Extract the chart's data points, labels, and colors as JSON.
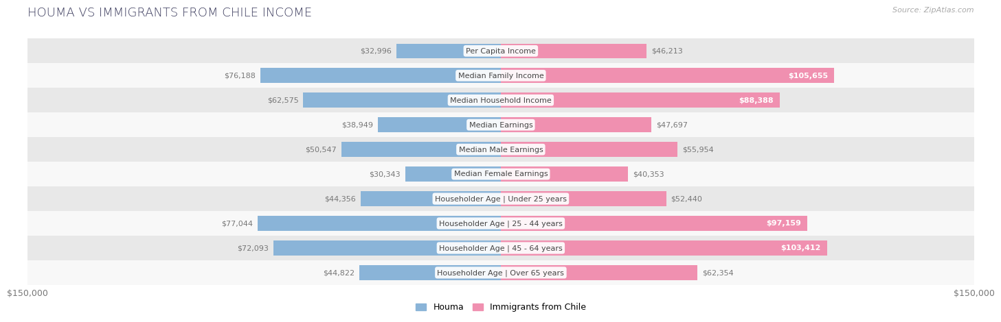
{
  "title": "HOUMA VS IMMIGRANTS FROM CHILE INCOME",
  "source": "Source: ZipAtlas.com",
  "categories": [
    "Per Capita Income",
    "Median Family Income",
    "Median Household Income",
    "Median Earnings",
    "Median Male Earnings",
    "Median Female Earnings",
    "Householder Age | Under 25 years",
    "Householder Age | 25 - 44 years",
    "Householder Age | 45 - 64 years",
    "Householder Age | Over 65 years"
  ],
  "houma_values": [
    32996,
    76188,
    62575,
    38949,
    50547,
    30343,
    44356,
    77044,
    72093,
    44822
  ],
  "chile_values": [
    46213,
    105655,
    88388,
    47697,
    55954,
    40353,
    52440,
    97159,
    103412,
    62354
  ],
  "houma_color": "#8ab4d8",
  "chile_color": "#f090b0",
  "houma_label": "Houma",
  "chile_label": "Immigrants from Chile",
  "axis_max": 150000,
  "background_color": "#ffffff",
  "row_colors": [
    "#e8e8e8",
    "#f8f8f8"
  ],
  "label_color_normal": "#777777",
  "label_color_white": "#ffffff",
  "white_threshold": 85000,
  "x_tick_label": "$150,000",
  "bar_height": 0.6,
  "title_color": "#3a3a5c",
  "source_color": "#aaaaaa",
  "cat_label_fontsize": 8,
  "val_label_fontsize": 8
}
